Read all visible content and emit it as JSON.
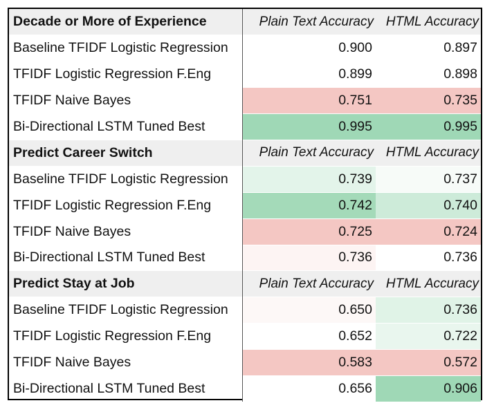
{
  "sections": [
    {
      "title": "Decade or More of Experience",
      "col1": "Plain Text Accuracy",
      "col2": "HTML Accuracy",
      "rows": [
        {
          "model": "Baseline TFIDF Logistic Regression",
          "plain": "0.900",
          "html": "0.897",
          "plain_color": "#ffffff",
          "html_color": "#ffffff"
        },
        {
          "model": "TFIDF Logistic Regression F.Eng",
          "plain": "0.899",
          "html": "0.898",
          "plain_color": "#ffffff",
          "html_color": "#ffffff"
        },
        {
          "model": "TFIDF Naive Bayes",
          "plain": "0.751",
          "html": "0.735",
          "plain_color": "#f4c7c3",
          "html_color": "#f4c7c3"
        },
        {
          "model": "Bi-Directional LSTM Tuned Best",
          "plain": "0.995",
          "html": "0.995",
          "plain_color": "#9fd8b6",
          "html_color": "#9fd8b6"
        }
      ]
    },
    {
      "title": "Predict Career Switch",
      "col1": "Plain Text Accuracy",
      "col2": "HTML Accuracy",
      "rows": [
        {
          "model": "Baseline TFIDF Logistic Regression",
          "plain": "0.739",
          "html": "0.737",
          "plain_color": "#e3f4ea",
          "html_color": "#f7fbf8"
        },
        {
          "model": "TFIDF Logistic Regression F.Eng",
          "plain": "0.742",
          "html": "0.740",
          "plain_color": "#a4dab9",
          "html_color": "#cdebd9"
        },
        {
          "model": "TFIDF Naive Bayes",
          "plain": "0.725",
          "html": "0.724",
          "plain_color": "#f4c7c3",
          "html_color": "#f4c7c3"
        },
        {
          "model": "Bi-Directional LSTM Tuned Best",
          "plain": "0.736",
          "html": "0.736",
          "plain_color": "#fdf4f3",
          "html_color": "#ffffff"
        }
      ]
    },
    {
      "title": "Predict Stay at Job",
      "col1": "Plain Text Accuracy",
      "col2": "HTML Accuracy",
      "rows": [
        {
          "model": "Baseline TFIDF Logistic Regression",
          "plain": "0.650",
          "html": "0.736",
          "plain_color": "#fdf8f7",
          "html_color": "#e0f3e7"
        },
        {
          "model": "TFIDF Logistic Regression F.Eng",
          "plain": "0.652",
          "html": "0.722",
          "plain_color": "#ffffff",
          "html_color": "#e9f6ee"
        },
        {
          "model": "TFIDF Naive Bayes",
          "plain": "0.583",
          "html": "0.572",
          "plain_color": "#f4c7c3",
          "html_color": "#f4c7c3"
        },
        {
          "model": "Bi-Directional LSTM Tuned Best",
          "plain": "0.656",
          "html": "0.906",
          "plain_color": "#ffffff",
          "html_color": "#9fd8b6"
        }
      ]
    }
  ]
}
